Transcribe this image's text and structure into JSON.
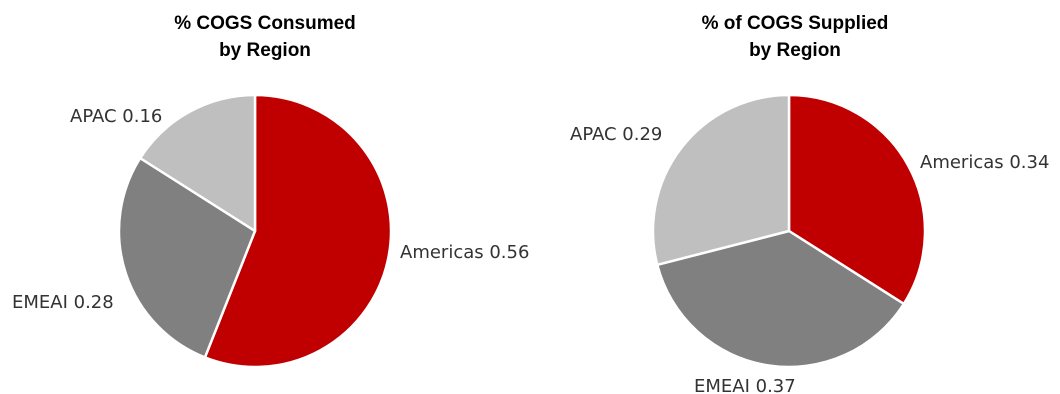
{
  "chart_data": [
    {
      "type": "pie",
      "title_lines": [
        "% COGS Consumed",
        "by Region"
      ],
      "slices": [
        {
          "label": "Americas",
          "value": 0.56,
          "color": "#c00000"
        },
        {
          "label": "EMEAI",
          "value": 0.28,
          "color": "#808080"
        },
        {
          "label": "APAC",
          "value": 0.16,
          "color": "#bfbfbf"
        }
      ],
      "label_texts": [
        "Americas 0.56",
        "EMEAI 0.28",
        "APAC 0.16"
      ],
      "start_angle": "12 o'clock",
      "direction": "clockwise",
      "legend": "none"
    },
    {
      "type": "pie",
      "title_lines": [
        "% of COGS Supplied",
        "by Region"
      ],
      "slices": [
        {
          "label": "Americas",
          "value": 0.34,
          "color": "#c00000"
        },
        {
          "label": "EMEAI",
          "value": 0.37,
          "color": "#808080"
        },
        {
          "label": "APAC",
          "value": 0.29,
          "color": "#bfbfbf"
        }
      ],
      "label_texts": [
        "Americas 0.34",
        "EMEAI 0.37",
        "APAC 0.29"
      ],
      "start_angle": "12 o'clock",
      "direction": "clockwise",
      "legend": "none"
    }
  ]
}
